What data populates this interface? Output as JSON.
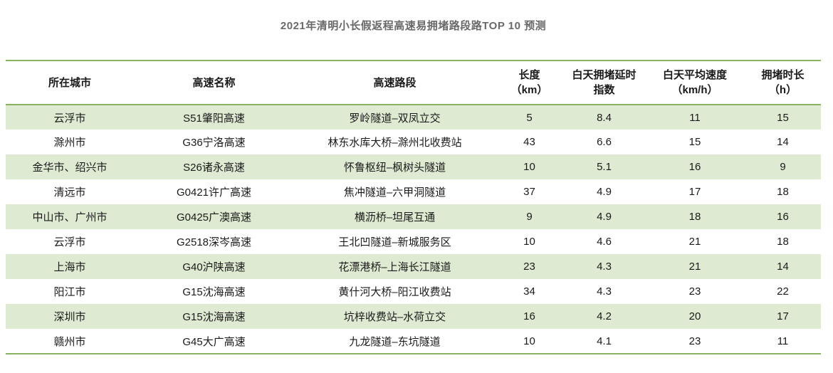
{
  "page": {
    "title": "2021年清明小长假返程高速易拥堵路段路TOP 10 预测"
  },
  "colors": {
    "accent_green": "#88b45f",
    "stripe_green": "#deebd2",
    "title_gray": "#696969",
    "text_dark": "#1a1a1a"
  },
  "table": {
    "columns": [
      {
        "name": "所在城市",
        "line1": "所在城市",
        "line2": ""
      },
      {
        "name": "高速名称",
        "line1": "高速名称",
        "line2": ""
      },
      {
        "name": "高速路段",
        "line1": "高速路段",
        "line2": ""
      },
      {
        "name": "长度（km）",
        "line1": "长度",
        "line2": "（km）"
      },
      {
        "name": "白天拥堵延时指数",
        "line1": "白天拥堵延时",
        "line2": "指数"
      },
      {
        "name": "白天平均速度（km/h）",
        "line1": "白天平均速度",
        "line2": "（km/h）"
      },
      {
        "name": "拥堵时长（h）",
        "line1": "拥堵时长",
        "line2": "（h）"
      }
    ]
  },
  "chart_data": {
    "type": "table",
    "title": "2021年清明小长假返程高速易拥堵路段路TOP 10 预测",
    "columns": [
      "所在城市",
      "高速名称",
      "高速路段",
      "长度（km）",
      "白天拥堵延时指数",
      "白天平均速度（km/h）",
      "拥堵时长（h）"
    ],
    "rows": [
      [
        "云浮市",
        "S51肇阳高速",
        "罗岭隧道–双凤立交",
        5,
        8.4,
        11,
        15
      ],
      [
        "滁州市",
        "G36宁洛高速",
        "林东水库大桥–滁州北收费站",
        43,
        6.6,
        15,
        14
      ],
      [
        "金华市、绍兴市",
        "S26诸永高速",
        "怀鲁枢纽–枫树头隧道",
        10,
        5.1,
        16,
        9
      ],
      [
        "清远市",
        "G0421许广高速",
        "焦冲隧道–六甲洞隧道",
        37,
        4.9,
        17,
        18
      ],
      [
        "中山市、广州市",
        "G0425广澳高速",
        "横沥桥–坦尾互通",
        9,
        4.9,
        18,
        16
      ],
      [
        "云浮市",
        "G2518深岑高速",
        "王北凹隧道–新城服务区",
        10,
        4.6,
        21,
        18
      ],
      [
        "上海市",
        "G40沪陕高速",
        "花漂港桥–上海长江隧道",
        23,
        4.3,
        21,
        14
      ],
      [
        "阳江市",
        "G15沈海高速",
        "黄什河大桥–阳江收费站",
        34,
        4.3,
        23,
        22
      ],
      [
        "深圳市",
        "G15沈海高速",
        "坑梓收费站–水荷立交",
        16,
        4.2,
        20,
        17
      ],
      [
        "赣州市",
        "G45大广高速",
        "九龙隧道–东坑隧道",
        10,
        4.1,
        23,
        11
      ]
    ]
  }
}
